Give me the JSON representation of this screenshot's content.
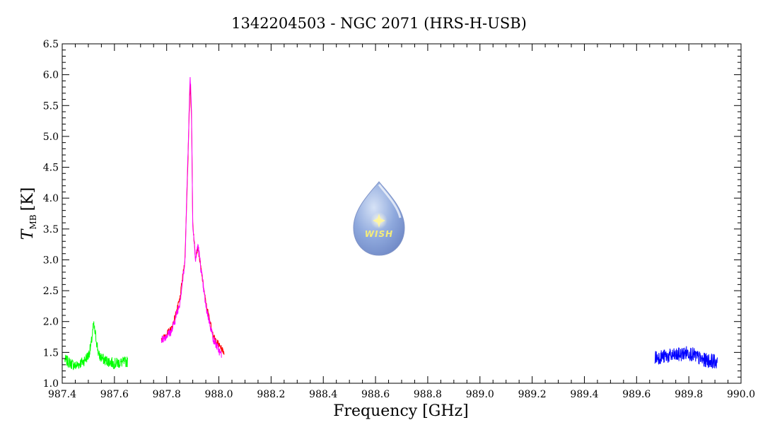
{
  "chart_data": {
    "type": "line",
    "title": "1342204503 - NGC 2071 (HRS-H-USB)",
    "xlabel": "Frequency [GHz]",
    "ylabel": {
      "symbol": "T",
      "subscript": "MB",
      "unit": "[K]"
    },
    "xlim": [
      987.4,
      990.0
    ],
    "ylim": [
      1.0,
      6.5
    ],
    "xticks": [
      "987.4",
      "987.6",
      "987.8",
      "988.0",
      "988.2",
      "988.4",
      "988.6",
      "988.8",
      "989.0",
      "989.2",
      "989.4",
      "989.6",
      "989.8",
      "990.0"
    ],
    "yticks": [
      "1.0",
      "1.5",
      "2.0",
      "2.5",
      "3.0",
      "3.5",
      "4.0",
      "4.5",
      "5.0",
      "5.5",
      "6.0",
      "6.5"
    ],
    "grid": false,
    "series": [
      {
        "color": "#00ff00",
        "x_range": [
          987.41,
          987.65
        ],
        "baseline": 1.35,
        "noise": 0.09,
        "points": [
          [
            987.41,
            1.38
          ],
          [
            987.45,
            1.28
          ],
          [
            987.48,
            1.35
          ],
          [
            987.5,
            1.45
          ],
          [
            987.51,
            1.6
          ],
          [
            987.52,
            1.95
          ],
          [
            987.53,
            1.72
          ],
          [
            987.54,
            1.45
          ],
          [
            987.56,
            1.38
          ],
          [
            987.6,
            1.32
          ],
          [
            987.65,
            1.35
          ]
        ]
      },
      {
        "color": "#ff0000",
        "x_range": [
          987.78,
          988.02
        ],
        "baseline": 1.55,
        "noise": 0.05,
        "points": [
          [
            987.78,
            1.7
          ],
          [
            987.82,
            1.9
          ],
          [
            987.85,
            2.35
          ],
          [
            987.87,
            3.0
          ],
          [
            987.88,
            4.4
          ],
          [
            987.89,
            5.85
          ],
          [
            987.895,
            5.4
          ],
          [
            987.9,
            3.6
          ],
          [
            987.91,
            3.05
          ],
          [
            987.92,
            3.2
          ],
          [
            987.93,
            2.9
          ],
          [
            987.95,
            2.3
          ],
          [
            987.98,
            1.75
          ],
          [
            988.02,
            1.5
          ]
        ]
      },
      {
        "color": "#ff00ff",
        "x_range": [
          987.78,
          988.01
        ],
        "baseline": 1.55,
        "noise": 0.07,
        "points": [
          [
            987.78,
            1.7
          ],
          [
            987.82,
            1.85
          ],
          [
            987.85,
            2.3
          ],
          [
            987.87,
            2.95
          ],
          [
            987.88,
            4.5
          ],
          [
            987.89,
            6.0
          ],
          [
            987.895,
            5.5
          ],
          [
            987.9,
            3.6
          ],
          [
            987.91,
            3.0
          ],
          [
            987.92,
            3.25
          ],
          [
            987.93,
            2.9
          ],
          [
            987.95,
            2.25
          ],
          [
            987.98,
            1.7
          ],
          [
            988.01,
            1.45
          ]
        ]
      },
      {
        "color": "#0000ff",
        "x_range": [
          989.67,
          989.91
        ],
        "baseline": 1.4,
        "noise": 0.12,
        "points": [
          [
            989.67,
            1.42
          ],
          [
            989.75,
            1.45
          ],
          [
            989.8,
            1.5
          ],
          [
            989.85,
            1.38
          ],
          [
            989.91,
            1.35
          ]
        ]
      }
    ]
  },
  "logo": {
    "text": "WISH"
  }
}
